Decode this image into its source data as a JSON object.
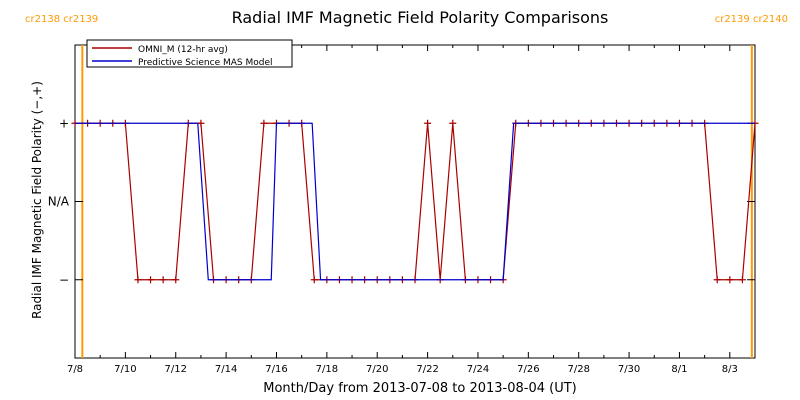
{
  "chart_data": {
    "type": "line",
    "title": "Radial IMF Magnetic Field Polarity Comparisons",
    "xlabel": "Month/Day from 2013-07-08 to 2013-08-04 (UT)",
    "ylabel": "Radial IMF Magnetic Field Polarity (−,+)",
    "x_start": "2013-07-08",
    "x_end": "2013-08-04",
    "x_ticks": [
      "7/8",
      "7/10",
      "7/12",
      "7/14",
      "7/16",
      "7/18",
      "7/20",
      "7/22",
      "7/24",
      "7/26",
      "7/28",
      "7/30",
      "8/1",
      "8/3"
    ],
    "y_levels": [
      "−",
      "N/A",
      "+"
    ],
    "y_tick_labels": [
      "−",
      "N/A",
      "+"
    ],
    "ylim": [
      -2,
      2
    ],
    "legend_position": "top-left",
    "carrington_markers": [
      {
        "date": "2013-07-08T07:00",
        "labels": [
          "cr2138",
          "cr2139"
        ],
        "color": "#ff9900"
      },
      {
        "date": "2013-08-03T21:00",
        "labels": [
          "cr2139",
          "cr2140"
        ],
        "color": "#ff9900"
      }
    ],
    "series": [
      {
        "name": "OMNI_M (12-hr avg)",
        "color": "#aa0000",
        "marker": "+",
        "points": [
          [
            "2013-07-08T00:00",
            1
          ],
          [
            "2013-07-08T12:00",
            1
          ],
          [
            "2013-07-09T00:00",
            1
          ],
          [
            "2013-07-09T12:00",
            1
          ],
          [
            "2013-07-10T00:00",
            1
          ],
          [
            "2013-07-10T12:00",
            -1
          ],
          [
            "2013-07-11T00:00",
            -1
          ],
          [
            "2013-07-11T12:00",
            -1
          ],
          [
            "2013-07-12T00:00",
            -1
          ],
          [
            "2013-07-12T12:00",
            1
          ],
          [
            "2013-07-13T00:00",
            1
          ],
          [
            "2013-07-13T12:00",
            -1
          ],
          [
            "2013-07-14T00:00",
            -1
          ],
          [
            "2013-07-14T12:00",
            -1
          ],
          [
            "2013-07-15T00:00",
            -1
          ],
          [
            "2013-07-15T12:00",
            1
          ],
          [
            "2013-07-16T00:00",
            1
          ],
          [
            "2013-07-16T12:00",
            1
          ],
          [
            "2013-07-17T00:00",
            1
          ],
          [
            "2013-07-17T12:00",
            -1
          ],
          [
            "2013-07-18T00:00",
            -1
          ],
          [
            "2013-07-18T12:00",
            -1
          ],
          [
            "2013-07-19T00:00",
            -1
          ],
          [
            "2013-07-19T12:00",
            -1
          ],
          [
            "2013-07-20T00:00",
            -1
          ],
          [
            "2013-07-20T12:00",
            -1
          ],
          [
            "2013-07-21T00:00",
            -1
          ],
          [
            "2013-07-21T12:00",
            -1
          ],
          [
            "2013-07-22T00:00",
            1
          ],
          [
            "2013-07-22T12:00",
            -1
          ],
          [
            "2013-07-23T00:00",
            1
          ],
          [
            "2013-07-23T12:00",
            -1
          ],
          [
            "2013-07-24T00:00",
            -1
          ],
          [
            "2013-07-24T12:00",
            -1
          ],
          [
            "2013-07-25T00:00",
            -1
          ],
          [
            "2013-07-25T12:00",
            1
          ],
          [
            "2013-07-26T00:00",
            1
          ],
          [
            "2013-07-26T12:00",
            1
          ],
          [
            "2013-07-27T00:00",
            1
          ],
          [
            "2013-07-27T12:00",
            1
          ],
          [
            "2013-07-28T00:00",
            1
          ],
          [
            "2013-07-28T12:00",
            1
          ],
          [
            "2013-07-29T00:00",
            1
          ],
          [
            "2013-07-29T12:00",
            1
          ],
          [
            "2013-07-30T00:00",
            1
          ],
          [
            "2013-07-30T12:00",
            1
          ],
          [
            "2013-07-31T00:00",
            1
          ],
          [
            "2013-07-31T12:00",
            1
          ],
          [
            "2013-08-01T00:00",
            1
          ],
          [
            "2013-08-01T12:00",
            1
          ],
          [
            "2013-08-02T00:00",
            1
          ],
          [
            "2013-08-02T12:00",
            -1
          ],
          [
            "2013-08-03T00:00",
            -1
          ],
          [
            "2013-08-03T12:00",
            -1
          ],
          [
            "2013-08-04T00:00",
            1
          ]
        ]
      },
      {
        "name": "Predictive Science MAS Model",
        "color": "#0000cc",
        "points": [
          [
            "2013-07-08T00:00",
            1
          ],
          [
            "2013-07-12T21:00",
            1
          ],
          [
            "2013-07-13T07:00",
            -1
          ],
          [
            "2013-07-15T19:00",
            -1
          ],
          [
            "2013-07-16T00:00",
            1
          ],
          [
            "2013-07-17T10:00",
            1
          ],
          [
            "2013-07-17T18:00",
            -1
          ],
          [
            "2013-07-25T00:00",
            -1
          ],
          [
            "2013-07-25T10:00",
            1
          ],
          [
            "2013-08-04T00:00",
            1
          ]
        ]
      }
    ]
  }
}
